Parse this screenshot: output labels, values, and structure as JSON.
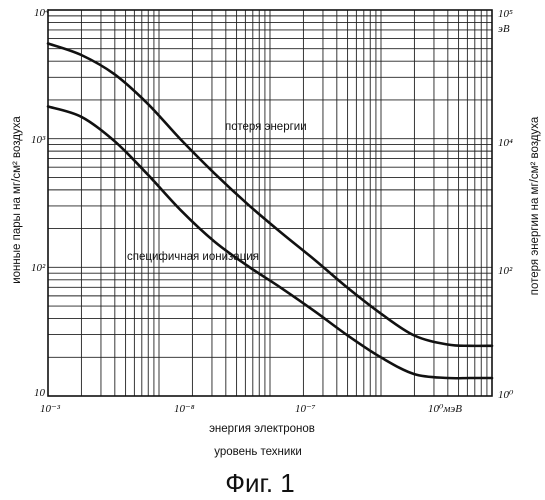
{
  "chart_data": {
    "type": "line",
    "x_scale": "log",
    "y_scale": "log",
    "grid": true,
    "x_tick_labels": [
      "10⁻³",
      "10⁻⁸",
      "10⁻⁷",
      "10⁰мэВ"
    ],
    "y_left_tick_labels": [
      "10⁴",
      "10³",
      "10²",
      "10"
    ],
    "y_right_tick_labels": [
      "10⁵",
      "эВ",
      "10⁴",
      "10²",
      "10⁰"
    ],
    "xlabel": "энергия электронов",
    "xlabel2": "уровень техники",
    "ylabel_left": "ионные пары на мг/см² воздуха",
    "ylabel_right": "потеря энергии на мг/см² воздуха",
    "series": [
      {
        "name": "потеря энергии",
        "x_decades": [
          0,
          0.3,
          0.6,
          0.9,
          1.2,
          1.5,
          1.8,
          2.1,
          2.4,
          2.7,
          3.0,
          3.3,
          3.6,
          3.8,
          4.0
        ],
        "y_decades": [
          2.74,
          2.65,
          2.5,
          2.27,
          1.99,
          1.73,
          1.49,
          1.27,
          1.06,
          0.84,
          0.64,
          0.47,
          0.4,
          0.39,
          0.39
        ]
      },
      {
        "name": "специфичная ионизация",
        "x_decades": [
          0,
          0.3,
          0.6,
          0.9,
          1.2,
          1.5,
          1.8,
          2.1,
          2.4,
          2.7,
          3.0,
          3.3,
          3.6,
          3.8,
          4.0
        ],
        "y_decades": [
          2.25,
          2.17,
          1.98,
          1.72,
          1.44,
          1.2,
          1.01,
          0.84,
          0.66,
          0.47,
          0.3,
          0.17,
          0.14,
          0.14,
          0.14
        ]
      }
    ]
  },
  "figure": {
    "caption": "Фиг. 1"
  }
}
